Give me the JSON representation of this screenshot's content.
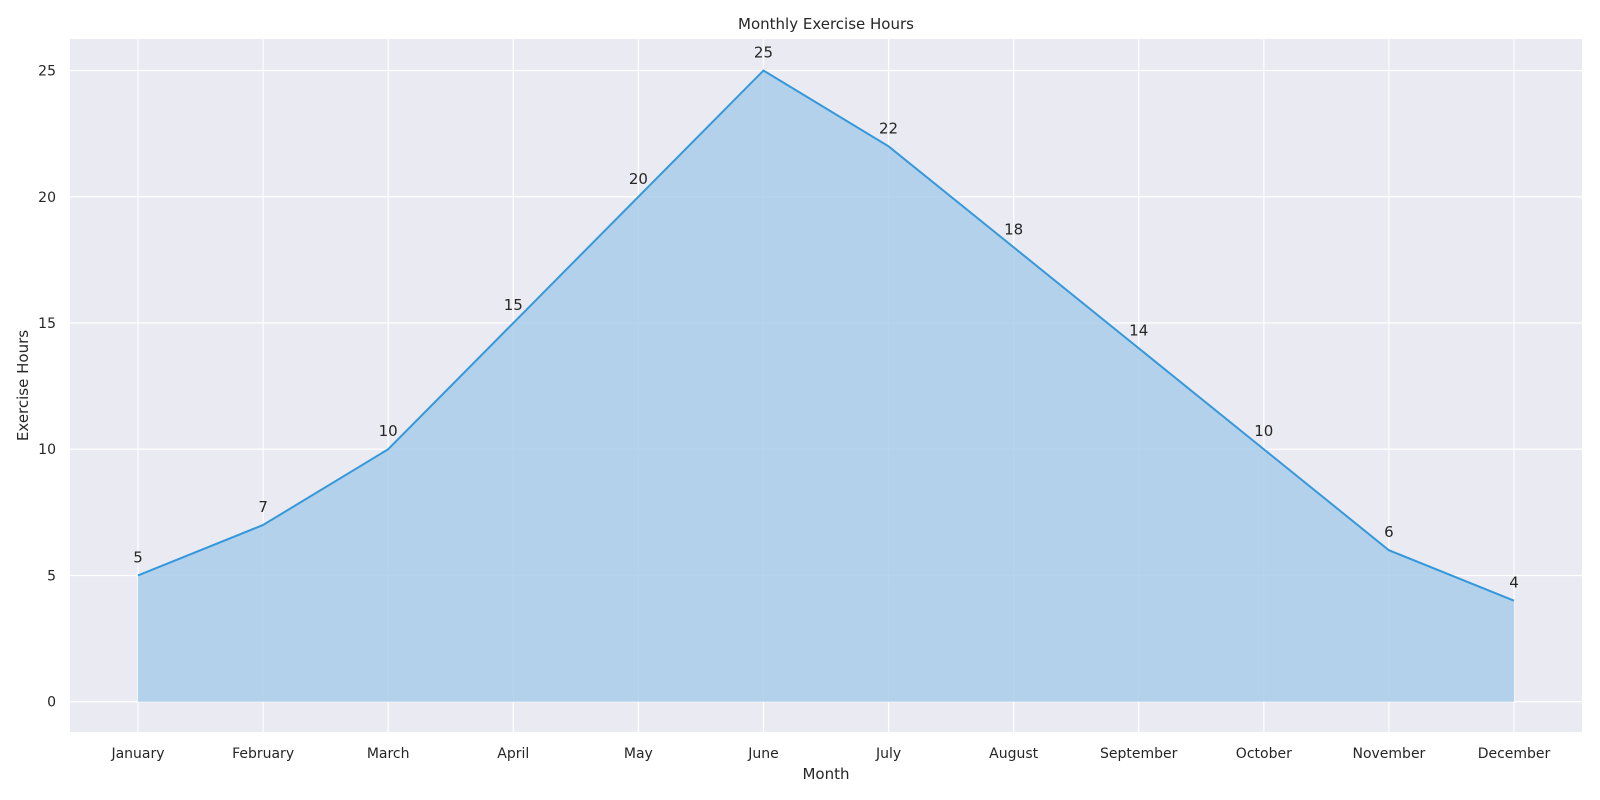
{
  "chart_data": {
    "type": "area",
    "title": "Monthly Exercise Hours",
    "xlabel": "Month",
    "ylabel": "Exercise Hours",
    "categories": [
      "January",
      "February",
      "March",
      "April",
      "May",
      "June",
      "July",
      "August",
      "September",
      "October",
      "November",
      "December"
    ],
    "values": [
      5,
      7,
      10,
      15,
      20,
      25,
      22,
      18,
      14,
      10,
      6,
      4
    ],
    "ylim": [
      -1.2,
      26.25
    ],
    "yticks": [
      0,
      5,
      10,
      15,
      20,
      25
    ],
    "grid": true,
    "data_labels": true,
    "colors": {
      "line": "#3498db",
      "fill": "#a9cdea",
      "plot_background": "#eaeaf2",
      "grid": "#ffffff"
    }
  }
}
